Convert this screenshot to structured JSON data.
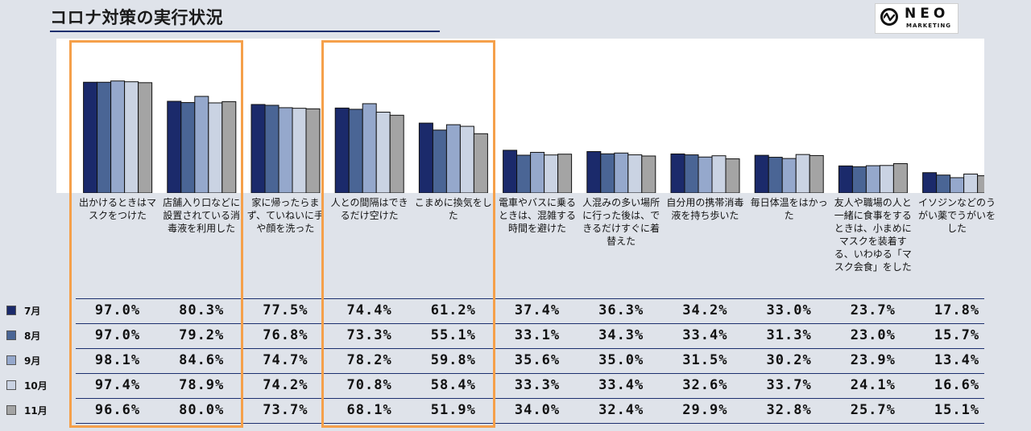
{
  "title": "コロナ対策の実行状況",
  "logo": {
    "name": "NEO",
    "sub": "MARKETING"
  },
  "colors": {
    "series": [
      "#1b2a6b",
      "#4a6595",
      "#95a8cc",
      "#cad3e3",
      "#a4a4a4"
    ],
    "highlight": "#f5a04a",
    "rule": "#1b2f6e"
  },
  "chart_data": {
    "type": "bar",
    "title": "コロナ対策の実行状況",
    "categories": [
      "出かけるときはマスクをつけた",
      "店舗入り口などに設置されている消毒液を利用した",
      "家に帰ったらまず、ていねいに手や顔を洗った",
      "人との間隔はできるだけ空けた",
      "こまめに換気をした",
      "電車やバスに乗るときは、混雑する時間を避けた",
      "人混みの多い場所に行った後は、できるだけすぐに着替えた",
      "自分用の携帯消毒液を持ち歩いた",
      "毎日体温をはかった",
      "友人や職場の人と一緒に食事をするときは、小まめにマスクを装着する、いわゆる「マスク会食」をした",
      "イソジンなどのうがい薬でうがいをした"
    ],
    "series": [
      {
        "name": "7月",
        "values": [
          97.0,
          80.3,
          77.5,
          74.4,
          61.2,
          37.4,
          36.3,
          34.2,
          33.0,
          23.7,
          17.8
        ]
      },
      {
        "name": "8月",
        "values": [
          97.0,
          79.2,
          76.8,
          73.3,
          55.1,
          33.1,
          34.3,
          33.4,
          31.3,
          23.0,
          15.7
        ]
      },
      {
        "name": "9月",
        "values": [
          98.1,
          84.6,
          74.7,
          78.2,
          59.8,
          35.6,
          35.0,
          31.5,
          30.2,
          23.9,
          13.4
        ]
      },
      {
        "name": "10月",
        "values": [
          97.4,
          78.9,
          74.2,
          70.8,
          58.4,
          33.3,
          33.4,
          32.6,
          33.7,
          24.1,
          16.6
        ]
      },
      {
        "name": "11月",
        "values": [
          96.6,
          80.0,
          73.7,
          68.1,
          51.9,
          34.0,
          32.4,
          29.9,
          32.8,
          25.7,
          15.1
        ]
      }
    ],
    "ylim": [
      0,
      100
    ],
    "unit": "%",
    "highlighted_categories": [
      0,
      1,
      3,
      4
    ]
  }
}
